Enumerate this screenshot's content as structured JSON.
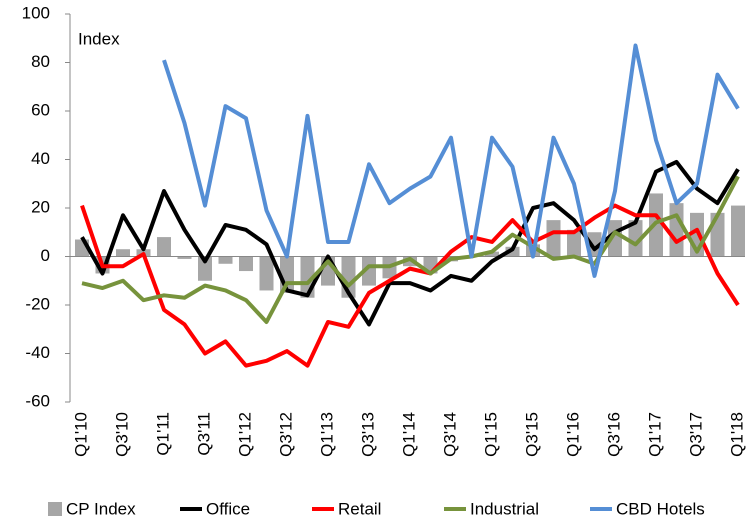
{
  "chart_data": {
    "type": "combo",
    "y_label": "Index",
    "categories": [
      "Q1'10",
      null,
      "Q3'10",
      null,
      "Q1'11",
      null,
      "Q3'11",
      null,
      "Q1'12",
      null,
      "Q3'12",
      null,
      "Q1'13",
      null,
      "Q3'13",
      null,
      "Q1'14",
      null,
      "Q3'14",
      null,
      "Q1'15",
      null,
      "Q3'15",
      null,
      "Q1'16",
      null,
      "Q3'16",
      null,
      "Q1'17",
      null,
      "Q3'17",
      null,
      "Q1'18"
    ],
    "series": [
      {
        "name": "CP Index",
        "type": "bar",
        "color": "#a6a6a6",
        "values": [
          7,
          -7,
          3,
          3,
          8,
          -1,
          -10,
          -3,
          -6,
          -14,
          -15,
          -17,
          -12,
          -17,
          -12,
          -9,
          -4,
          -7,
          -2,
          0,
          2,
          4,
          5,
          15,
          11,
          10,
          15,
          15,
          26,
          22,
          18,
          18,
          21
        ]
      },
      {
        "name": "Office",
        "type": "line",
        "color": "#000000",
        "values": [
          8,
          -7,
          17,
          3,
          27,
          11,
          -2,
          13,
          11,
          5,
          -14,
          -16,
          0,
          -15,
          -28,
          -11,
          -11,
          -14,
          -8,
          -10,
          -2,
          3,
          20,
          22,
          15,
          3,
          10,
          14,
          35,
          39,
          28,
          22,
          36
        ]
      },
      {
        "name": "Retail",
        "type": "line",
        "color": "#ff0000",
        "values": [
          21,
          -4,
          -4,
          1,
          -22,
          -28,
          -40,
          -35,
          -45,
          -43,
          -39,
          -45,
          -27,
          -29,
          -15,
          -10,
          -5,
          -7,
          2,
          8,
          6,
          15,
          6,
          10,
          10,
          16,
          21,
          17,
          17,
          6,
          11,
          -7,
          -20
        ]
      },
      {
        "name": "Industrial",
        "type": "line",
        "color": "#77933c",
        "values": [
          -11,
          -13,
          -10,
          -18,
          -16,
          -17,
          -12,
          -14,
          -18,
          -27,
          -11,
          -11,
          -2,
          -12,
          -4,
          -4,
          -1,
          -7,
          -1,
          0,
          2,
          9,
          4,
          -1,
          0,
          -3,
          10,
          5,
          14,
          17,
          2,
          17,
          33
        ]
      },
      {
        "name": "CBD Hotels",
        "type": "line",
        "color": "#558ed5",
        "values": [
          null,
          null,
          null,
          null,
          81,
          55,
          21,
          62,
          57,
          19,
          0,
          58,
          6,
          6,
          38,
          22,
          28,
          33,
          49,
          0,
          49,
          37,
          0,
          49,
          30,
          -8,
          27,
          87,
          48,
          22,
          30,
          75,
          61
        ]
      }
    ],
    "ylim": [
      -60,
      100
    ],
    "yticks": [
      -60,
      -40,
      -20,
      0,
      20,
      40,
      60,
      80,
      100
    ],
    "legend": "bottom"
  }
}
